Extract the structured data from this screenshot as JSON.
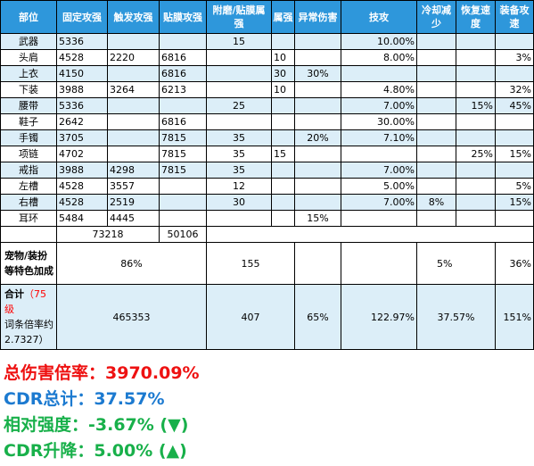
{
  "headers": [
    "部位",
    "固定攻强",
    "触发攻强",
    "贴膜攻强",
    "附磨/贴膜属强",
    "属强",
    "异常伤害",
    "技攻",
    "冷却减少",
    "恢复速度",
    "装备攻速"
  ],
  "rows": [
    [
      "武器",
      "5336",
      "",
      "",
      "15",
      "",
      "",
      "10.00%",
      "",
      "",
      ""
    ],
    [
      "头肩",
      "4528",
      "2220",
      "6816",
      "",
      "10",
      "",
      "8.00%",
      "",
      "",
      "3%"
    ],
    [
      "上衣",
      "4150",
      "",
      "6816",
      "",
      "30",
      "30%",
      "",
      "",
      "",
      ""
    ],
    [
      "下装",
      "3988",
      "3264",
      "6213",
      "",
      "10",
      "",
      "4.80%",
      "",
      "",
      "32%"
    ],
    [
      "腰带",
      "5336",
      "",
      "",
      "25",
      "",
      "",
      "7.00%",
      "",
      "15%",
      "45%"
    ],
    [
      "鞋子",
      "2642",
      "",
      "6816",
      "",
      "",
      "",
      "30.00%",
      "",
      "",
      ""
    ],
    [
      "手镯",
      "3705",
      "",
      "7815",
      "35",
      "",
      "20%",
      "7.10%",
      "",
      "",
      ""
    ],
    [
      "项链",
      "4702",
      "",
      "7815",
      "35",
      "15",
      "",
      "",
      "",
      "25%",
      "15%"
    ],
    [
      "戒指",
      "3988",
      "4298",
      "7815",
      "35",
      "",
      "",
      "7.00%",
      "",
      "",
      ""
    ],
    [
      "左槽",
      "4528",
      "3557",
      "",
      "12",
      "",
      "",
      "5.00%",
      "",
      "",
      "5%"
    ],
    [
      "右槽",
      "4528",
      "2519",
      "",
      "30",
      "",
      "",
      "7.00%",
      "8%",
      "",
      "15%"
    ],
    [
      "耳环",
      "5484",
      "4445",
      "",
      "",
      "",
      "15%",
      "",
      "",
      "",
      ""
    ]
  ],
  "sums": {
    "fixed_plus_trigger": "73218",
    "film": "50106"
  },
  "bonus": {
    "label": "宠物/装扮等特色加成",
    "atk": "86%",
    "elem": "155",
    "cd": "5%",
    "speed": "36%"
  },
  "total": {
    "label_main": "合计",
    "label_level": "（75级",
    "label_rest": "词条倍率约2.7327）",
    "atk": "465353",
    "elem": "407",
    "abnormal": "65%",
    "skill": "122.97%",
    "cdr": "37.57%",
    "speed": "151%"
  },
  "summary": [
    {
      "text": "总伤害倍率：3970.09%",
      "color": "#ee1111"
    },
    {
      "text": "CDR总计：37.57%",
      "color": "#1c7ad0"
    },
    {
      "text": "相对强度：-3.67% (▼)",
      "color": "#18b04a"
    },
    {
      "text": "CDR升降：5.00% (▲)",
      "color": "#18b04a"
    }
  ]
}
